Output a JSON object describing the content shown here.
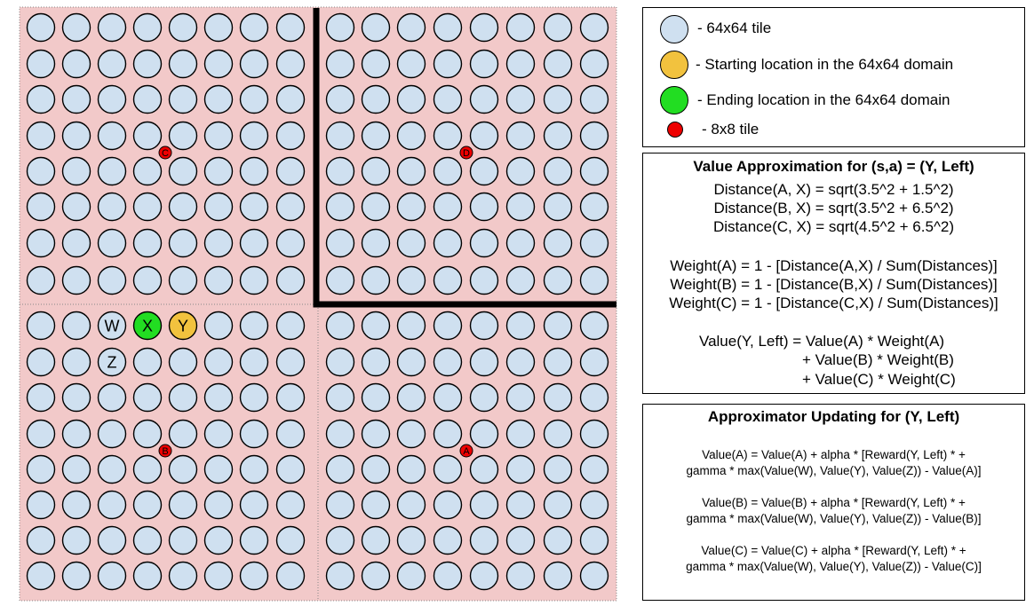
{
  "colors": {
    "quadrant_bg": "#f2c9c9",
    "tile_fill": "#cfe0f0",
    "start_fill": "#f2c23e",
    "end_fill": "#22dd22",
    "small_tile_fill": "#ee0000",
    "wall": "#000000"
  },
  "grid": {
    "special_tiles": [
      {
        "label": "W",
        "kind": "tile"
      },
      {
        "label": "X",
        "kind": "end"
      },
      {
        "label": "Y",
        "kind": "start"
      },
      {
        "label": "Z",
        "kind": "tile"
      }
    ],
    "small_tiles": [
      {
        "label": "C"
      },
      {
        "label": "D"
      },
      {
        "label": "B"
      },
      {
        "label": "A"
      }
    ]
  },
  "legend": {
    "tile_64": "- 64x64 tile",
    "start": "- Starting location in the 64x64 domain",
    "end": "- Ending location in the 64x64 domain",
    "tile_8": "- 8x8 tile"
  },
  "value_box": {
    "title": "Value Approximation for (s,a) = (Y, Left)",
    "distances": [
      "Distance(A, X) = sqrt(3.5^2 + 1.5^2)",
      "Distance(B, X) = sqrt(3.5^2 + 6.5^2)",
      "Distance(C, X) = sqrt(4.5^2 + 6.5^2)"
    ],
    "weights": [
      "Weight(A) = 1 - [Distance(A,X) / Sum(Distances)]",
      "Weight(B) = 1 - [Distance(B,X) / Sum(Distances)]",
      "Weight(C) = 1 - [Distance(C,X) / Sum(Distances)]"
    ],
    "value_lines": [
      "Value(Y, Left) = Value(A) * Weight(A)",
      "+ Value(B) * Weight(B)",
      "+ Value(C) * Weight(C)"
    ]
  },
  "update_box": {
    "title": "Approximator Updating for (Y, Left)",
    "lines": [
      "Value(A) = Value(A) +  alpha * [Reward(Y, Left) * +",
      "gamma * max(Value(W), Value(Y), Value(Z)) - Value(A)]",
      "Value(B) = Value(B) +  alpha * [Reward(Y, Left) * +",
      "gamma * max(Value(W), Value(Y), Value(Z)) - Value(B)]",
      "Value(C) = Value(C) +  alpha * [Reward(Y, Left) * +",
      "gamma * max(Value(W), Value(Y), Value(Z)) - Value(C)]"
    ]
  }
}
